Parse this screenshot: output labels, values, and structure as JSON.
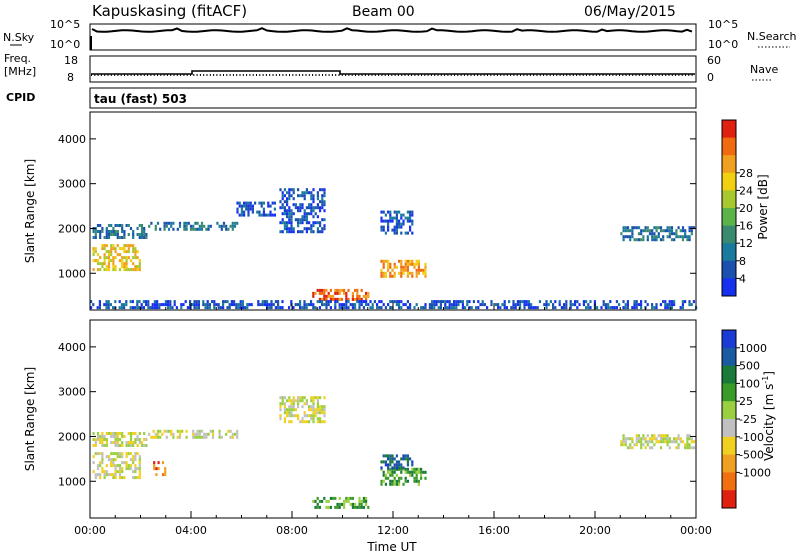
{
  "header": {
    "station": "Kapuskasing (fitACF)",
    "beam": "Beam 00",
    "date": "06/May/2015"
  },
  "strip": {
    "nsky_label": "N.Sky",
    "nsky_ticks": [
      "10^5",
      "10^0"
    ],
    "nsearch_label": "N.Search",
    "nsearch_ticks": [
      "10^5",
      "10^0"
    ],
    "freq_label": "Freq.",
    "freq_unit": "[MHz]",
    "freq_ticks": [
      "18",
      "8"
    ],
    "nave_label": "Nave",
    "nave_ticks": [
      "60",
      "0"
    ],
    "cpid_label": "CPID",
    "cpid_value": "tau (fast) 503"
  },
  "chart_data": [
    {
      "type": "heatmap",
      "panel": "power",
      "ylabel": "Slant Range [km]",
      "x_ticks": [
        "00:00",
        "04:00",
        "08:00",
        "12:00",
        "16:00",
        "20:00",
        "00:00"
      ],
      "y_ticks": [
        1000,
        2000,
        3000,
        4000
      ],
      "xlim": [
        0,
        24
      ],
      "ylim": [
        180,
        4600
      ],
      "colorbar": {
        "label": "Power [dB]",
        "ticks": [
          4,
          8,
          12,
          16,
          20,
          24,
          28
        ],
        "colors": [
          "#1630f0",
          "#1a50b0",
          "#1a7a9e",
          "#3a8a70",
          "#5ab44a",
          "#a8c830",
          "#f0d010",
          "#f0a020",
          "#f06a10",
          "#e02010"
        ]
      },
      "regions": [
        {
          "t0": 0.1,
          "t1": 2.2,
          "r0": 1800,
          "r1": 2100,
          "level": 2
        },
        {
          "t0": 0.1,
          "t1": 2.0,
          "r0": 1100,
          "r1": 1650,
          "level": 6
        },
        {
          "t0": 2.3,
          "t1": 5.8,
          "r0": 1950,
          "r1": 2150,
          "level": 2
        },
        {
          "t0": 5.8,
          "t1": 7.3,
          "r0": 2300,
          "r1": 2600,
          "level": 1
        },
        {
          "t0": 7.5,
          "t1": 9.3,
          "r0": 1900,
          "r1": 2900,
          "level": 1
        },
        {
          "t0": 8.8,
          "t1": 11.0,
          "r0": 400,
          "r1": 650,
          "level": 8
        },
        {
          "t0": 11.5,
          "t1": 13.3,
          "r0": 900,
          "r1": 1300,
          "level": 7
        },
        {
          "t0": 11.5,
          "t1": 12.8,
          "r0": 1900,
          "r1": 2400,
          "level": 1
        },
        {
          "t0": 21.0,
          "t1": 23.9,
          "r0": 1750,
          "r1": 2050,
          "level": 2
        },
        {
          "t0": 0.0,
          "t1": 24.0,
          "r0": 230,
          "r1": 400,
          "level": 1
        }
      ]
    },
    {
      "type": "heatmap",
      "panel": "velocity",
      "ylabel": "Slant Range [km]",
      "xlabel": "Time UT",
      "x_ticks": [
        "00:00",
        "04:00",
        "08:00",
        "12:00",
        "16:00",
        "20:00",
        "00:00"
      ],
      "y_ticks": [
        1000,
        2000,
        3000,
        4000
      ],
      "xlim": [
        0,
        24
      ],
      "ylim": [
        180,
        4600
      ],
      "colorbar": {
        "label": "Velocity [m s",
        "label_sup": "-1",
        "label_end": "]",
        "ticks": [
          1000,
          500,
          100,
          25,
          -25,
          -100,
          -500,
          -1000
        ],
        "colors": [
          "#1a3bd6",
          "#1a5aa0",
          "#1a7a3a",
          "#3a9a2a",
          "#9ad040",
          "#c0c0c0",
          "#f0d020",
          "#f0a020",
          "#f07010",
          "#e02010"
        ]
      },
      "regions": [
        {
          "t0": 0.1,
          "t1": 2.2,
          "r0": 1800,
          "r1": 2100,
          "level": 5
        },
        {
          "t0": 0.1,
          "t1": 2.0,
          "r0": 1100,
          "r1": 1650,
          "level": 5
        },
        {
          "t0": 2.3,
          "t1": 5.8,
          "r0": 1950,
          "r1": 2150,
          "level": 5
        },
        {
          "t0": 2.5,
          "t1": 3.0,
          "r0": 1150,
          "r1": 1450,
          "level": 8
        },
        {
          "t0": 7.5,
          "t1": 9.3,
          "r0": 2300,
          "r1": 2900,
          "level": 5
        },
        {
          "t0": 8.8,
          "t1": 11.0,
          "r0": 400,
          "r1": 650,
          "level": 3
        },
        {
          "t0": 11.5,
          "t1": 13.3,
          "r0": 900,
          "r1": 1300,
          "level": 3
        },
        {
          "t0": 11.5,
          "t1": 12.8,
          "r0": 1300,
          "r1": 1600,
          "level": 1
        },
        {
          "t0": 21.0,
          "t1": 23.9,
          "r0": 1750,
          "r1": 2050,
          "level": 5
        }
      ]
    }
  ]
}
